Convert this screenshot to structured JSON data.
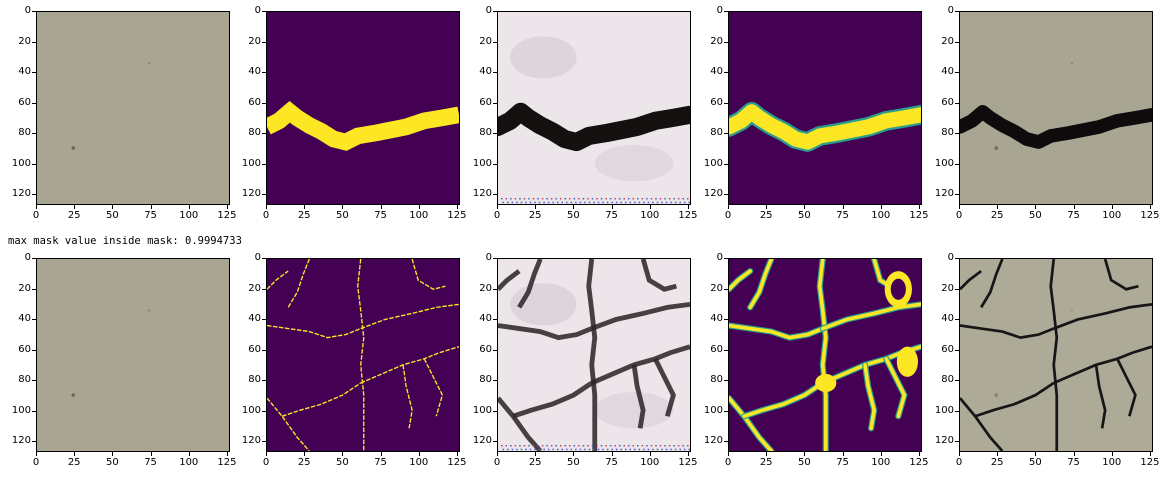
{
  "output_text": "max mask value inside mask: 0.9994733",
  "axes": {
    "y_ticks": [
      "0",
      "20",
      "40",
      "60",
      "80",
      "100",
      "120"
    ],
    "x_ticks": [
      "0",
      "25",
      "50",
      "75",
      "100",
      "125"
    ],
    "xlim": [
      0,
      127
    ],
    "ylim": [
      0,
      127
    ]
  },
  "colors": {
    "stone": "#a9a593",
    "viridis_dark": "#440154",
    "viridis_yellow": "#fde725",
    "crack": "#0d0b0b"
  },
  "rows": [
    {
      "panels": [
        {
          "kind": "input-texture"
        },
        {
          "kind": "binary-mask"
        },
        {
          "kind": "generated-crack"
        },
        {
          "kind": "predicted-mask"
        },
        {
          "kind": "composited-result"
        }
      ]
    },
    {
      "panels": [
        {
          "kind": "input-texture"
        },
        {
          "kind": "binary-mask"
        },
        {
          "kind": "generated-crack"
        },
        {
          "kind": "predicted-mask"
        },
        {
          "kind": "composited-result"
        }
      ]
    }
  ]
}
